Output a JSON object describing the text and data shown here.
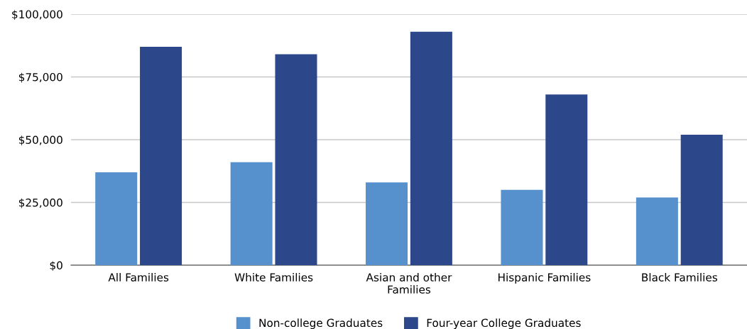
{
  "chart_data": {
    "type": "bar",
    "categories": [
      "All Families",
      "White Families",
      "Asian and other\nFamilies",
      "Hispanic Families",
      "Black Families"
    ],
    "series": [
      {
        "name": "Non-college Graduates",
        "color": "#5690cd",
        "values": [
          37000,
          41000,
          33000,
          30000,
          27000
        ]
      },
      {
        "name": "Four-year College Graduates",
        "color": "#2c488b",
        "values": [
          87000,
          84000,
          93000,
          68000,
          52000
        ]
      }
    ],
    "ylim": [
      0,
      100000
    ],
    "yticks": [
      {
        "value": 0,
        "label": "$0"
      },
      {
        "value": 25000,
        "label": "$25,000"
      },
      {
        "value": 50000,
        "label": "$50,000"
      },
      {
        "value": 75000,
        "label": "$75,000"
      },
      {
        "value": 100000,
        "label": "$100,000"
      }
    ],
    "grid": "y",
    "legend": "bottom"
  }
}
